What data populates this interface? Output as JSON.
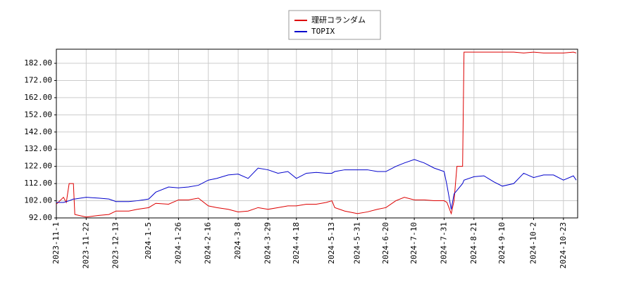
{
  "chart_data": {
    "type": "line",
    "x": [
      "2023-11-1",
      "2023-11-6",
      "2023-11-8",
      "2023-11-10",
      "2023-11-13",
      "2023-11-14",
      "2023-11-22",
      "2023-12-1",
      "2023-12-8",
      "2023-12-13",
      "2023-12-22",
      "2023-12-28",
      "2024-1-5",
      "2024-1-10",
      "2024-1-19",
      "2024-1-26",
      "2024-2-2",
      "2024-2-9",
      "2024-2-16",
      "2024-2-22",
      "2024-3-1",
      "2024-3-8",
      "2024-3-15",
      "2024-3-22",
      "2024-3-29",
      "2024-4-5",
      "2024-4-12",
      "2024-4-18",
      "2024-4-25",
      "2024-5-2",
      "2024-5-9",
      "2024-5-13",
      "2024-5-15",
      "2024-5-22",
      "2024-5-31",
      "2024-6-7",
      "2024-6-14",
      "2024-6-20",
      "2024-6-27",
      "2024-7-3",
      "2024-7-10",
      "2024-7-17",
      "2024-7-24",
      "2024-7-31",
      "2024-8-2",
      "2024-8-5",
      "2024-8-7",
      "2024-8-9",
      "2024-8-13",
      "2024-8-14",
      "2024-8-21",
      "2024-8-28",
      "2024-9-4",
      "2024-9-10",
      "2024-9-18",
      "2024-9-25",
      "2024-10-2",
      "2024-10-9",
      "2024-10-16",
      "2024-10-23",
      "2024-10-30",
      "2024-11-1"
    ],
    "series": [
      {
        "name": "理研コランダム",
        "color": "#dd0000",
        "values": [
          100,
          104,
          101,
          112,
          112,
          94,
          92.5,
          93.5,
          94,
          96,
          96,
          97,
          98,
          100.5,
          100,
          102.5,
          102.5,
          103.5,
          99,
          98,
          97,
          95.5,
          96,
          98,
          97,
          98,
          99,
          99,
          100,
          100,
          101,
          102,
          98,
          96,
          94.5,
          95.5,
          97,
          98,
          102,
          104,
          102.5,
          102.5,
          102,
          102,
          101,
          94.5,
          102,
          122,
          122,
          188.5,
          188.5,
          188.5,
          188.5,
          188.5,
          188.5,
          188,
          188.5,
          188,
          188,
          188,
          188.5,
          188
        ]
      },
      {
        "name": "TOPIX",
        "color": "#0000cc",
        "values": [
          101,
          101,
          101.5,
          102,
          103,
          103,
          104,
          103.5,
          103,
          101.5,
          101.5,
          102,
          103,
          107,
          110,
          109.5,
          110,
          111,
          114,
          115,
          117,
          117.5,
          115,
          121,
          120,
          118,
          119,
          115,
          118,
          118.5,
          118,
          118,
          119,
          120,
          120,
          120,
          119,
          119,
          122,
          124,
          126,
          124,
          121,
          119,
          111,
          97,
          106,
          108,
          112,
          114,
          116,
          116.5,
          113,
          110.5,
          112,
          118,
          115.5,
          117,
          117,
          114,
          116.5,
          114
        ]
      }
    ],
    "xlim": [
      "2023-11-1",
      "2024-11-2"
    ],
    "xticks": [
      "2023-11-1",
      "2023-11-22",
      "2023-12-13",
      "2024-1-5",
      "2024-1-26",
      "2024-2-16",
      "2024-3-8",
      "2024-3-29",
      "2024-4-18",
      "2024-5-13",
      "2024-5-31",
      "2024-6-20",
      "2024-7-10",
      "2024-7-31",
      "2024-8-21",
      "2024-9-10",
      "2024-10-2",
      "2024-10-23"
    ],
    "ylim": [
      92,
      190.2
    ],
    "yticks": [
      {
        "value": 92,
        "label": "92.00"
      },
      {
        "value": 102,
        "label": "102.00"
      },
      {
        "value": 112,
        "label": "112.00"
      },
      {
        "value": 122,
        "label": "122.00"
      },
      {
        "value": 132,
        "label": "132.00"
      },
      {
        "value": 142,
        "label": "142.00"
      },
      {
        "value": 152,
        "label": "152.00"
      },
      {
        "value": 162,
        "label": "162.00"
      },
      {
        "value": 172,
        "label": "172.00"
      },
      {
        "value": 182,
        "label": "182.00"
      }
    ],
    "grid": true,
    "legend": "top"
  }
}
